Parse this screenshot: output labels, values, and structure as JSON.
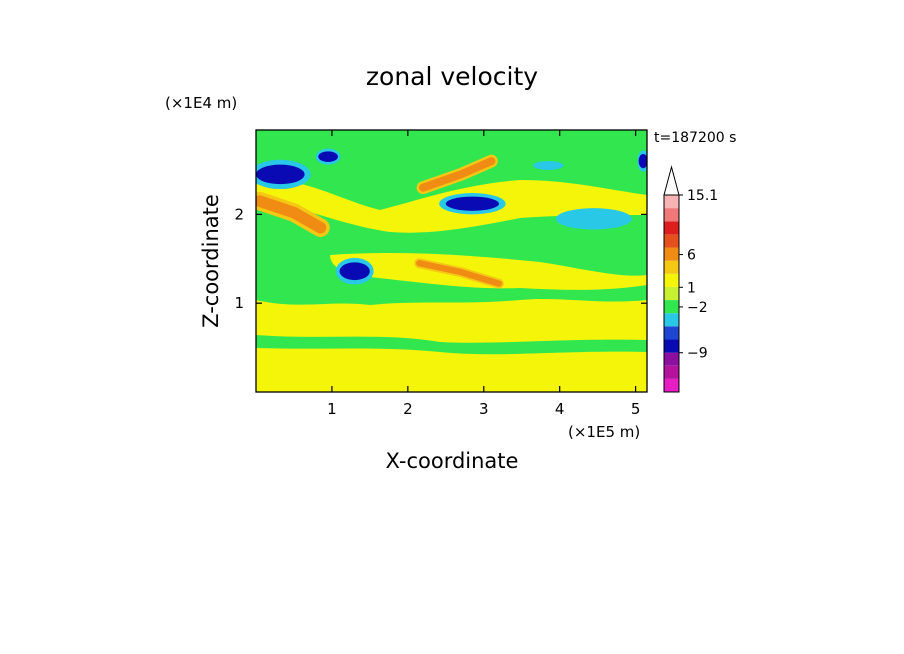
{
  "chart_data": {
    "type": "heatmap",
    "title": "zonal velocity",
    "xlabel": "X-coordinate",
    "ylabel": "Z-coordinate",
    "x_unit": "(×1E5 m)",
    "y_unit": "(×1E4 m)",
    "time_label": "t=187200 s",
    "x_ticks": [
      "1",
      "2",
      "3",
      "4",
      "5"
    ],
    "y_ticks": [
      "1",
      "2"
    ],
    "xlim": [
      0,
      5.15
    ],
    "ylim": [
      0,
      2.95
    ],
    "grid": false,
    "colorbar": {
      "labels": [
        {
          "text": "15.1",
          "value": 15.1
        },
        {
          "text": "6",
          "value": 6
        },
        {
          "text": "1",
          "value": 1
        },
        {
          "text": "−2",
          "value": -2
        },
        {
          "text": "−9",
          "value": -9
        }
      ],
      "colors": [
        "#e61ec3",
        "#b4149b",
        "#8c0fa0",
        "#0a0ab4",
        "#1e46d2",
        "#28c8e6",
        "#32e650",
        "#c8f032",
        "#f5f50a",
        "#f5c814",
        "#f08c14",
        "#e6501e",
        "#dc1e1e",
        "#f07878",
        "#f8b4b4"
      ]
    },
    "features": [
      {
        "kind": "band",
        "level": "orange",
        "pts": [
          [
            0.05,
            2.15
          ],
          [
            0.5,
            2.02
          ],
          [
            0.85,
            1.85
          ]
        ],
        "w": 0.13
      },
      {
        "kind": "blob",
        "level": "dark-blue",
        "x": 0.32,
        "y": 2.45,
        "rx": 0.32,
        "ry": 0.11
      },
      {
        "kind": "blob",
        "level": "dark-blue",
        "x": 1.3,
        "y": 1.36,
        "rx": 0.2,
        "ry": 0.1
      },
      {
        "kind": "blob",
        "level": "dark-blue",
        "x": 2.85,
        "y": 2.12,
        "rx": 0.35,
        "ry": 0.08
      },
      {
        "kind": "blob",
        "level": "dark-blue",
        "x": 0.95,
        "y": 2.65,
        "rx": 0.13,
        "ry": 0.06
      },
      {
        "kind": "band",
        "level": "orange",
        "pts": [
          [
            2.2,
            2.3
          ],
          [
            2.7,
            2.45
          ],
          [
            3.1,
            2.6
          ]
        ],
        "w": 0.09
      },
      {
        "kind": "band",
        "level": "orange",
        "pts": [
          [
            2.15,
            1.45
          ],
          [
            2.7,
            1.35
          ],
          [
            3.2,
            1.22
          ]
        ],
        "w": 0.07
      },
      {
        "kind": "blob",
        "level": "cyan",
        "x": 4.45,
        "y": 1.95,
        "rx": 0.5,
        "ry": 0.12
      },
      {
        "kind": "blob",
        "level": "cyan",
        "x": 3.85,
        "y": 2.55,
        "rx": 0.2,
        "ry": 0.05
      },
      {
        "kind": "blob",
        "level": "dark-blue",
        "x": 5.1,
        "y": 2.6,
        "rx": 0.06,
        "ry": 0.08
      }
    ]
  }
}
